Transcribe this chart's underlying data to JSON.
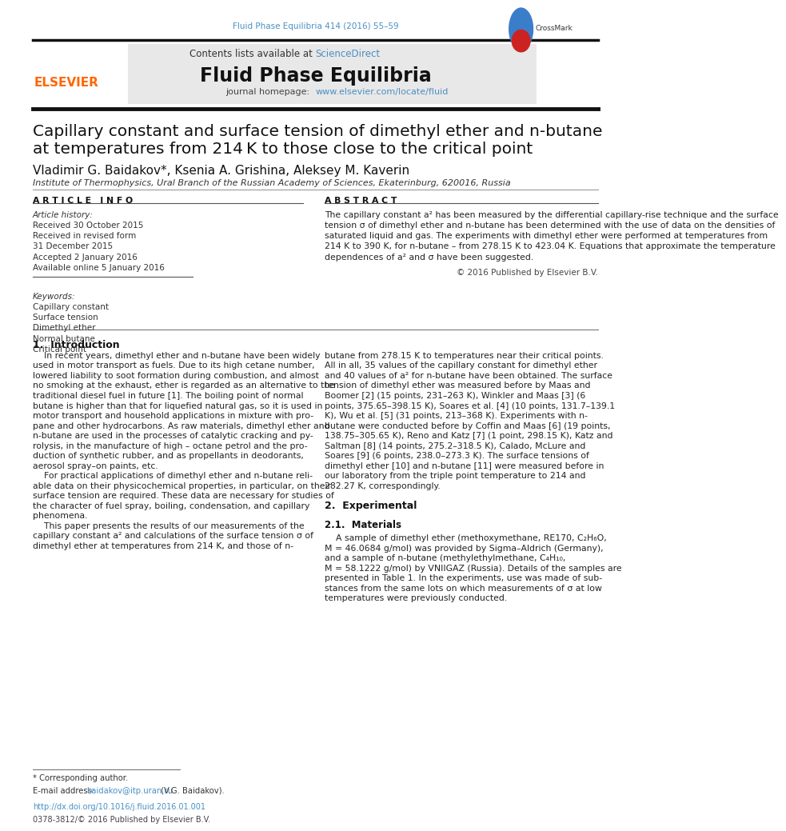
{
  "page_width": 9.92,
  "page_height": 13.23,
  "background_color": "#ffffff",
  "header_bg_color": "#e8e8e8",
  "journal_citation": "Fluid Phase Equilibria 414 (2016) 55–59",
  "journal_name": "Fluid Phase Equilibria",
  "journal_homepage_url": "www.elsevier.com/locate/fluid",
  "elsevier_color": "#ff6600",
  "link_color": "#4a90c4",
  "article_title_line1": "Capillary constant and surface tension of dimethyl ether and n-butane",
  "article_title_line2": "at temperatures from 214 K to those close to the critical point",
  "authors": "Vladimir G. Baidakov*, Ksenia A. Grishina, Aleksey M. Kaverin",
  "affiliation": "Institute of Thermophysics, Ural Branch of the Russian Academy of Sciences, Ekaterinburg, 620016, Russia",
  "article_info_header": "A R T I C L E   I N F O",
  "article_history_label": "Article history:",
  "article_history": [
    "Received 30 October 2015",
    "Received in revised form",
    "31 December 2015",
    "Accepted 2 January 2016",
    "Available online 5 January 2016"
  ],
  "keywords_label": "Keywords:",
  "keywords": [
    "Capillary constant",
    "Surface tension",
    "Dimethyl ether",
    "Normal butane",
    "Critical point"
  ],
  "abstract_header": "A B S T R A C T",
  "abstract_text": "The capillary constant a² has been measured by the differential capillary-rise technique and the surface\ntension σ of dimethyl ether and n-butane has been determined with the use of data on the densities of\nsaturated liquid and gas. The experiments with dimethyl ether were performed at temperatures from\n214 K to 390 K, for n-butane – from 278.15 K to 423.04 K. Equations that approximate the temperature\ndependences of a² and σ have been suggested.",
  "copyright_text": "© 2016 Published by Elsevier B.V.",
  "section1_header": "1.  Introduction",
  "section1_col1": "    In recent years, dimethyl ether and n-butane have been widely\nused in motor transport as fuels. Due to its high cetane number,\nlowered liability to soot formation during combustion, and almost\nno smoking at the exhaust, ether is regarded as an alternative to the\ntraditional diesel fuel in future [1]. The boiling point of normal\nbutane is higher than that for liquefied natural gas, so it is used in\nmotor transport and household applications in mixture with pro-\npane and other hydrocarbons. As raw materials, dimethyl ether and\nn-butane are used in the processes of catalytic cracking and py-\nrolysis, in the manufacture of high – octane petrol and the pro-\nduction of synthetic rubber, and as propellants in deodorants,\naerosol spray–on paints, etc.\n    For practical applications of dimethyl ether and n-butane reli-\nable data on their physicochemical properties, in particular, on their\nsurface tension are required. These data are necessary for studies of\nthe character of fuel spray, boiling, condensation, and capillary\nphenomena.\n    This paper presents the results of our measurements of the\ncapillary constant a² and calculations of the surface tension σ of\ndimethyl ether at temperatures from 214 K, and those of n-",
  "section1_col2": "butane from 278.15 K to temperatures near their critical points.\nAll in all, 35 values of the capillary constant for dimethyl ether\nand 40 values of a² for n-butane have been obtained. The surface\ntension of dimethyl ether was measured before by Maas and\nBoomer [2] (15 points, 231–263 K), Winkler and Maas [3] (6\npoints, 375.65–398.15 K), Soares et al. [4] (10 points, 131.7–139.1\nK), Wu et al. [5] (31 points, 213–368 K). Experiments with n-\nbutane were conducted before by Coffin and Maas [6] (19 points,\n138.75–305.65 K), Reno and Katz [7] (1 point, 298.15 K), Katz and\nSaltman [8] (14 points, 275.2–318.5 K), Calado, McLure and\nSoares [9] (6 points, 238.0–273.3 K). The surface tensions of\ndimethyl ether [10] and n-butane [11] were measured before in\nour laboratory from the triple point temperature to 214 and\n282.27 K, correspondingly.",
  "section2_header": "2.  Experimental",
  "section21_header": "2.1.  Materials",
  "section2_text": "    A sample of dimethyl ether (methoxymethane, RE170, C₂H₆O,\nM = 46.0684 g/mol) was provided by Sigma–Aldrich (Germany),\nand a sample of n-butane (methylethylmethane, C₄H₁₀,\nM = 58.1222 g/mol) by VNIIGAZ (Russia). Details of the samples are\npresented in Table 1. In the experiments, use was made of sub-\nstances from the same lots on which measurements of σ at low\ntemperatures were previously conducted.",
  "footnote_star": "* Corresponding author.",
  "footnote_email_label": "E-mail address: ",
  "footnote_email": "baidakov@itp.uran.ru",
  "footnote_email_suffix": " (V.G. Baidakov).",
  "doi_text": "http://dx.doi.org/10.1016/j.fluid.2016.01.001",
  "issn_text": "0378-3812/© 2016 Published by Elsevier B.V."
}
